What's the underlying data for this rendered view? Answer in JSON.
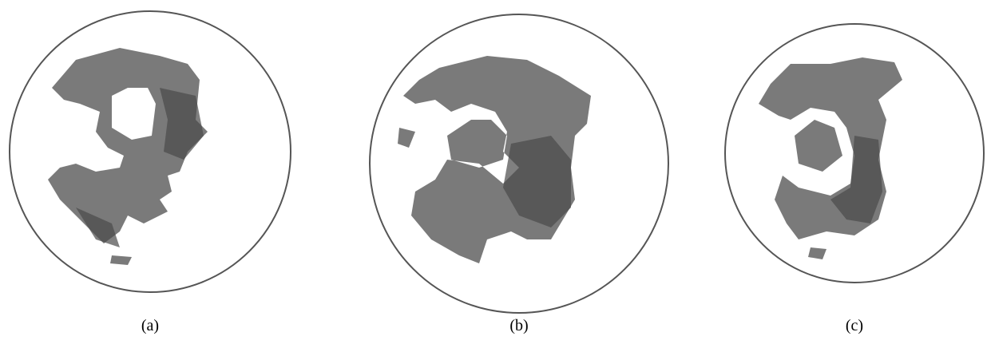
{
  "panels": [
    {
      "label": "(a)"
    },
    {
      "label": "(b)"
    },
    {
      "label": "(c)"
    }
  ]
}
